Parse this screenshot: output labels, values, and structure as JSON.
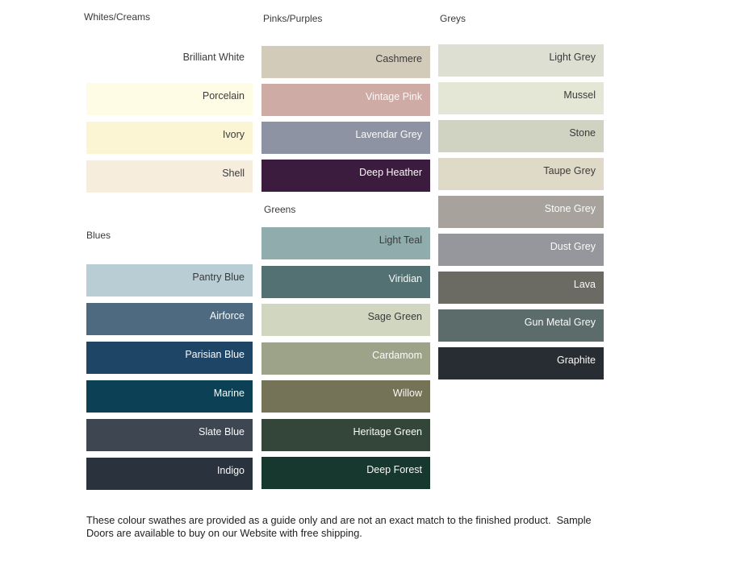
{
  "sections": [
    {
      "id": "whites-creams",
      "title": "Whites/Creams",
      "swatches": [
        {
          "name": "Brilliant White",
          "color": "#FFFFFF",
          "text": "dark"
        },
        {
          "name": "Porcelain",
          "color": "#FFFCE5",
          "text": "dark"
        },
        {
          "name": "Ivory",
          "color": "#FBF5D4",
          "text": "dark"
        },
        {
          "name": "Shell",
          "color": "#F6EDDC",
          "text": "dark"
        }
      ]
    },
    {
      "id": "blues",
      "title": "Blues",
      "swatches": [
        {
          "name": "Pantry Blue",
          "color": "#B9CED4",
          "text": "dark"
        },
        {
          "name": "Airforce",
          "color": "#4E6A80",
          "text": "light"
        },
        {
          "name": "Parisian Blue",
          "color": "#1E4566",
          "text": "light"
        },
        {
          "name": "Marine",
          "color": "#0B4055",
          "text": "light"
        },
        {
          "name": "Slate Blue",
          "color": "#3E4652",
          "text": "light"
        },
        {
          "name": "Indigo",
          "color": "#2A323D",
          "text": "light"
        }
      ]
    },
    {
      "id": "pinks-purples",
      "title": "Pinks/Purples",
      "swatches": [
        {
          "name": "Cashmere",
          "color": "#D2CBBA",
          "text": "dark"
        },
        {
          "name": "Vintage Pink",
          "color": "#CFABA5",
          "text": "light"
        },
        {
          "name": "Lavendar Grey",
          "color": "#8E93A4",
          "text": "light"
        },
        {
          "name": "Deep Heather",
          "color": "#3B1C3E",
          "text": "light"
        }
      ]
    },
    {
      "id": "greens",
      "title": "Greens",
      "swatches": [
        {
          "name": "Light Teal",
          "color": "#90ACAD",
          "text": "dark"
        },
        {
          "name": "Viridian",
          "color": "#537173",
          "text": "light"
        },
        {
          "name": "Sage Green",
          "color": "#D1D6C0",
          "text": "dark"
        },
        {
          "name": "Cardamom",
          "color": "#9DA389",
          "text": "light"
        },
        {
          "name": "Willow",
          "color": "#747257",
          "text": "light"
        },
        {
          "name": "Heritage Green",
          "color": "#34453A",
          "text": "light"
        },
        {
          "name": "Deep Forest",
          "color": "#16382F",
          "text": "light"
        }
      ]
    },
    {
      "id": "greys",
      "title": "Greys",
      "swatches": [
        {
          "name": "Light Grey",
          "color": "#DEDFD3",
          "text": "dark"
        },
        {
          "name": "Mussel",
          "color": "#E4E6D6",
          "text": "dark"
        },
        {
          "name": "Stone",
          "color": "#D0D3C1",
          "text": "dark"
        },
        {
          "name": "Taupe Grey",
          "color": "#DFDAC8",
          "text": "dark"
        },
        {
          "name": "Stone Grey",
          "color": "#A7A39C",
          "text": "light"
        },
        {
          "name": "Dust Grey",
          "color": "#96979C",
          "text": "light"
        },
        {
          "name": "Lava",
          "color": "#6B6B63",
          "text": "light"
        },
        {
          "name": "Gun Metal Grey",
          "color": "#5C6C6A",
          "text": "light"
        },
        {
          "name": "Graphite",
          "color": "#282D33",
          "text": "light"
        }
      ]
    }
  ],
  "footer": {
    "line1": "These colour swathes are provided as a guide only and are not an exact match to the finished product.  Sample",
    "line2": "Doors are available to buy on our Website with free shipping."
  }
}
